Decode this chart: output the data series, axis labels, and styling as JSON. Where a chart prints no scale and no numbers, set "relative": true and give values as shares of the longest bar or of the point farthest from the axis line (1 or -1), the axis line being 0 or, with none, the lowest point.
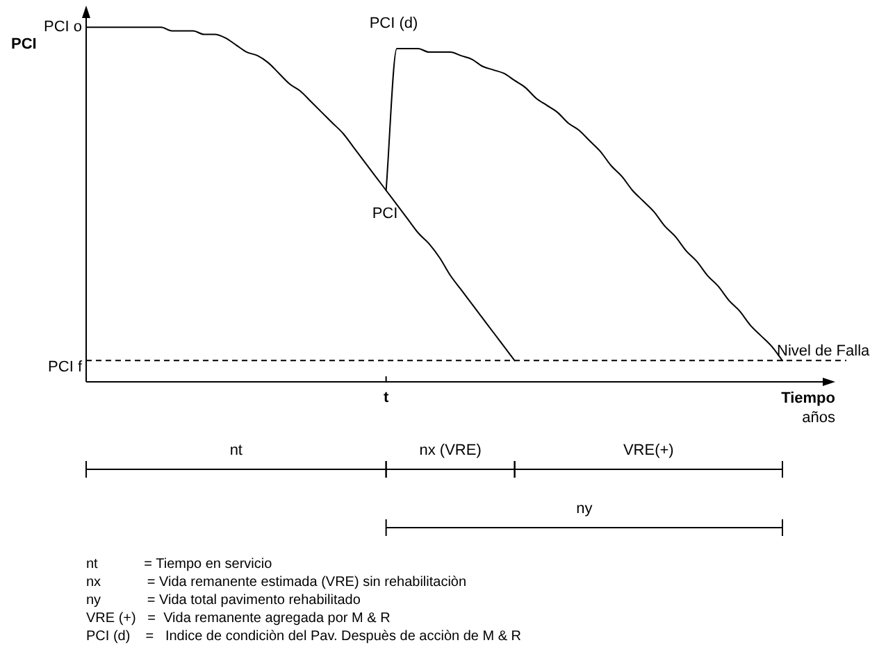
{
  "chart_data": {
    "type": "line",
    "relative": true,
    "ylabel": "PCI",
    "xlabel": "Tiempo años",
    "legend": false,
    "marker": "none",
    "line_style": "solid",
    "categories": [
      null,
      null,
      null,
      null,
      null,
      null,
      null,
      null,
      null,
      null,
      null,
      null,
      null,
      null,
      null,
      null,
      null,
      null,
      null,
      null,
      null,
      null,
      null,
      null,
      null,
      null,
      null,
      null,
      null,
      null,
      null,
      null,
      null,
      null,
      null,
      null,
      null,
      null,
      null,
      null,
      null,
      null,
      null,
      null,
      null,
      null,
      null,
      null,
      null,
      null,
      null,
      null,
      null,
      null,
      null,
      null,
      null,
      null,
      null,
      null,
      null,
      null,
      null,
      null,
      null,
      null
    ],
    "series": [
      {
        "color": "#000000",
        "values": [
          1,
          1,
          1,
          1,
          1,
          1,
          1,
          1,
          0.99,
          0.99,
          0.99,
          0.98,
          0.98,
          0.97,
          0.95,
          0.93,
          0.92,
          0.9,
          0.87,
          0.84,
          0.82,
          0.79,
          0.76,
          0.73,
          0.7,
          0.66,
          0.62,
          0.58,
          0.54,
          0.5,
          0.46,
          0.42,
          0.39,
          0.35,
          0.3,
          0.26,
          0.22,
          0.18,
          0.14,
          0.1,
          0.06,
          null,
          null,
          null,
          null,
          null,
          null,
          null,
          null,
          null,
          null,
          null,
          null,
          null,
          null,
          null,
          null,
          null,
          null,
          null,
          null,
          null,
          null,
          null,
          null,
          null
        ]
      },
      {
        "color": "#000000",
        "values": [
          null,
          null,
          null,
          null,
          null,
          null,
          null,
          null,
          null,
          null,
          null,
          null,
          null,
          null,
          null,
          null,
          null,
          null,
          null,
          null,
          null,
          null,
          null,
          null,
          null,
          null,
          null,
          null,
          0.54,
          0.94,
          0.94,
          0.94,
          0.93,
          0.93,
          0.93,
          0.92,
          0.91,
          0.89,
          0.88,
          0.87,
          0.85,
          0.83,
          0.8,
          0.78,
          0.76,
          0.73,
          0.71,
          0.68,
          0.65,
          0.61,
          0.58,
          0.54,
          0.51,
          0.48,
          0.44,
          0.41,
          0.37,
          0.34,
          0.3,
          0.27,
          0.23,
          0.2,
          0.16,
          0.13,
          0.1,
          0.06
        ]
      }
    ],
    "ref_lines": [
      {
        "axis": "y",
        "value": 0.06,
        "label": "Nivel de Falla",
        "line_style": "dashed",
        "color": "#000000"
      }
    ],
    "annotations": [
      "PCI o",
      "PCI f",
      {
        "text": "PCI (d)",
        "y": 0.94
      },
      {
        "text": "PCI",
        "y": 0.54
      },
      "t",
      "nt",
      "nx (VRE)",
      "VRE(+)",
      "ny",
      "nt            = Tiempo en servicio",
      "nx            = Vida remanente estimada (VRE) sin rehabilitaciòn",
      "ny            = Vida total pavimento rehabilitado",
      "VRE (+)   =  Vida remanente agregada por M & R",
      "PCI (d)    =   Indice de condiciòn del Pav. Despuès de acciòn de M & R"
    ]
  }
}
